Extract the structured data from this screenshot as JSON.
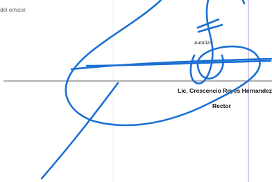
{
  "document": {
    "note": "del emisor",
    "signature": {
      "label": "Autoriza",
      "name": "Lic. Crescencio Reyes Hernandez",
      "title": "Rector"
    }
  }
}
